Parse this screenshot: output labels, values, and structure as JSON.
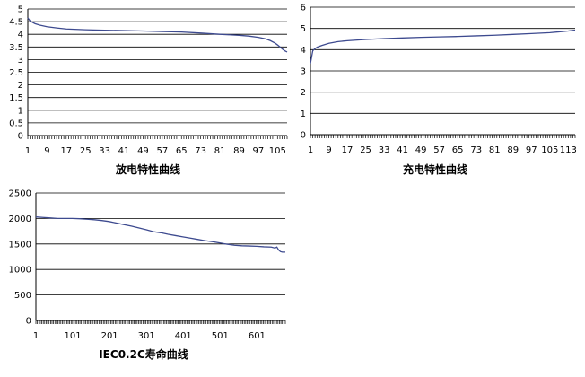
{
  "chart_data": [
    {
      "type": "line",
      "title": "放电特性曲线",
      "ylim": [
        0,
        5
      ],
      "yticks": [
        "0",
        "0.5",
        "1",
        "1.5",
        "2",
        "2.5",
        "3",
        "3.5",
        "4",
        "4.5",
        "5"
      ],
      "xlim": [
        1,
        109
      ],
      "xticks": [
        "1",
        "9",
        "17",
        "25",
        "33",
        "41",
        "49",
        "57",
        "65",
        "73",
        "81",
        "89",
        "97",
        "105"
      ],
      "grid": true,
      "series": [
        {
          "color": "#3d4a8f",
          "x": [
            1,
            2,
            4,
            6,
            9,
            13,
            17,
            25,
            33,
            41,
            49,
            57,
            65,
            73,
            81,
            85,
            89,
            93,
            97,
            100,
            102,
            104,
            105,
            106,
            107,
            108,
            109
          ],
          "y": [
            4.65,
            4.52,
            4.42,
            4.36,
            4.3,
            4.25,
            4.21,
            4.18,
            4.16,
            4.15,
            4.13,
            4.11,
            4.09,
            4.05,
            4.0,
            3.98,
            3.96,
            3.93,
            3.88,
            3.82,
            3.75,
            3.65,
            3.58,
            3.5,
            3.42,
            3.35,
            3.3
          ]
        }
      ]
    },
    {
      "type": "line",
      "title": "充电特性曲线",
      "ylim": [
        0,
        6
      ],
      "yticks": [
        "0",
        "1",
        "2",
        "3",
        "4",
        "5",
        "6"
      ],
      "xlim": [
        1,
        116
      ],
      "xticks": [
        "1",
        "9",
        "17",
        "25",
        "33",
        "41",
        "49",
        "57",
        "65",
        "73",
        "81",
        "89",
        "97",
        "105",
        "113"
      ],
      "grid": true,
      "series": [
        {
          "color": "#3d4a8f",
          "x": [
            1,
            2,
            3,
            4,
            6,
            9,
            13,
            17,
            25,
            33,
            41,
            49,
            57,
            65,
            73,
            81,
            89,
            97,
            105,
            109,
            113,
            116
          ],
          "y": [
            3.35,
            3.95,
            4.05,
            4.12,
            4.2,
            4.3,
            4.38,
            4.42,
            4.48,
            4.52,
            4.55,
            4.58,
            4.6,
            4.62,
            4.65,
            4.68,
            4.72,
            4.76,
            4.8,
            4.84,
            4.88,
            4.92
          ]
        }
      ]
    },
    {
      "type": "line",
      "title": "IEC0.2C寿命曲线",
      "ylim": [
        0,
        2500
      ],
      "yticks": [
        "0",
        "500",
        "1000",
        "1500",
        "2000",
        "2500"
      ],
      "xlim": [
        1,
        678
      ],
      "xticks": [
        "1",
        "101",
        "201",
        "301",
        "401",
        "501",
        "601"
      ],
      "grid": true,
      "series": [
        {
          "color": "#3d4a8f",
          "x": [
            1,
            20,
            40,
            60,
            80,
            100,
            120,
            140,
            160,
            180,
            200,
            220,
            240,
            260,
            280,
            300,
            320,
            340,
            360,
            380,
            400,
            420,
            440,
            460,
            480,
            500,
            520,
            540,
            560,
            580,
            600,
            620,
            640,
            650,
            655,
            660,
            665,
            670,
            678
          ],
          "y": [
            2030,
            2020,
            2010,
            2000,
            2000,
            2000,
            1995,
            1985,
            1975,
            1960,
            1940,
            1910,
            1880,
            1850,
            1815,
            1780,
            1740,
            1720,
            1690,
            1665,
            1640,
            1615,
            1590,
            1565,
            1545,
            1520,
            1495,
            1475,
            1465,
            1460,
            1455,
            1445,
            1440,
            1420,
            1440,
            1380,
            1350,
            1340,
            1340
          ]
        }
      ]
    }
  ]
}
